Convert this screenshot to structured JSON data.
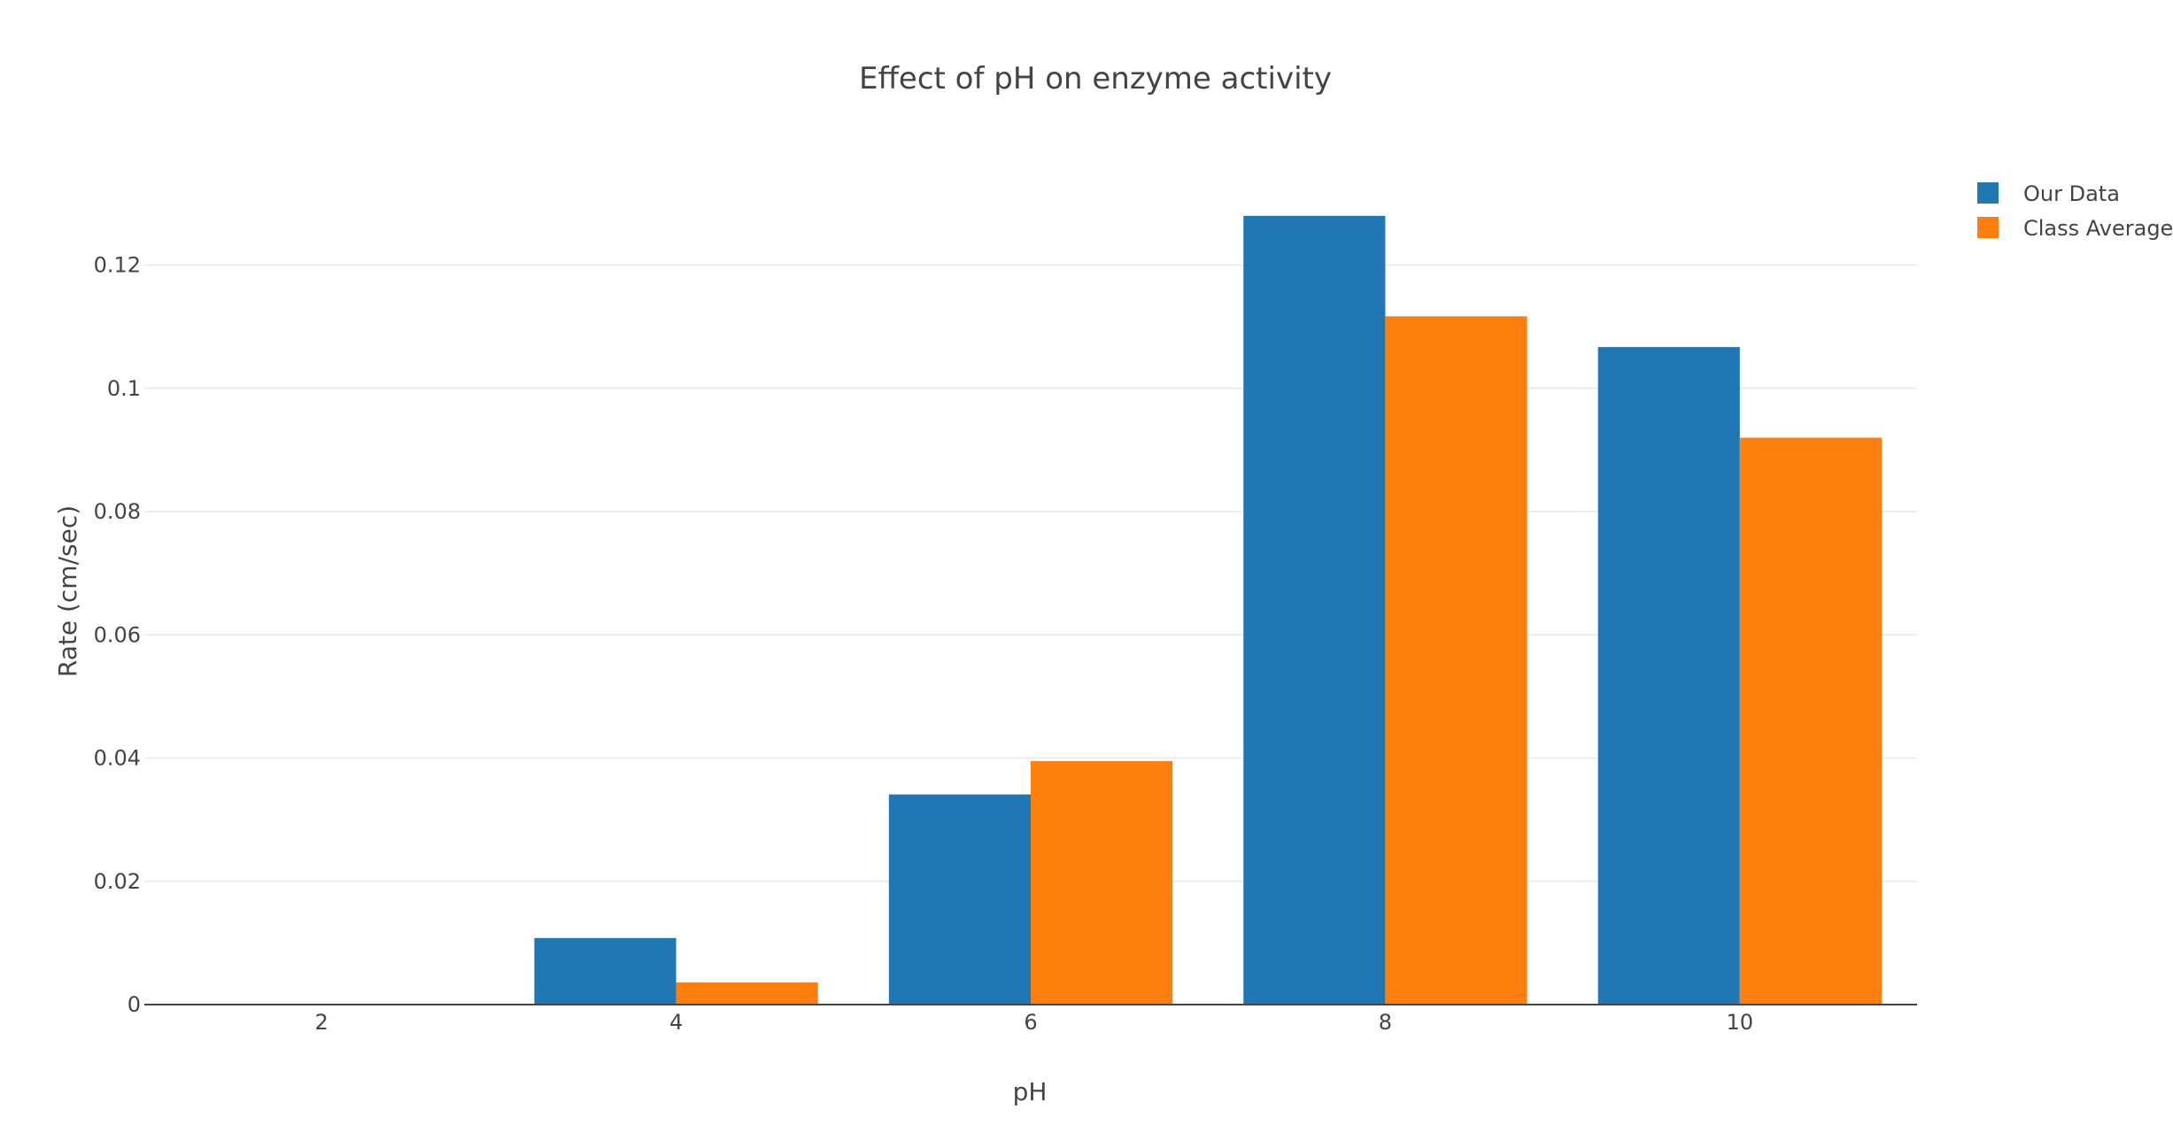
{
  "chart_data": {
    "type": "bar",
    "title": "Effect of pH on enzyme activity",
    "xlabel": "pH",
    "ylabel": "Rate (cm/sec)",
    "categories": [
      "2",
      "4",
      "6",
      "8",
      "10"
    ],
    "series": [
      {
        "name": "Our Data",
        "color": "#1f77b4",
        "values": [
          0,
          0.0108,
          0.0341,
          0.128,
          0.1067
        ]
      },
      {
        "name": "Class Average",
        "color": "#ff7f0e",
        "values": [
          0,
          0.0036,
          0.0395,
          0.1117,
          0.092
        ]
      }
    ],
    "ylim": [
      0,
      0.132
    ],
    "yticks": [
      0,
      0.02,
      0.04,
      0.06,
      0.08,
      0.1,
      0.12
    ],
    "ytick_labels": [
      "0",
      "0.02",
      "0.04",
      "0.06",
      "0.08",
      "0.1",
      "0.12"
    ],
    "grid": true,
    "legend_position": "top-right"
  }
}
